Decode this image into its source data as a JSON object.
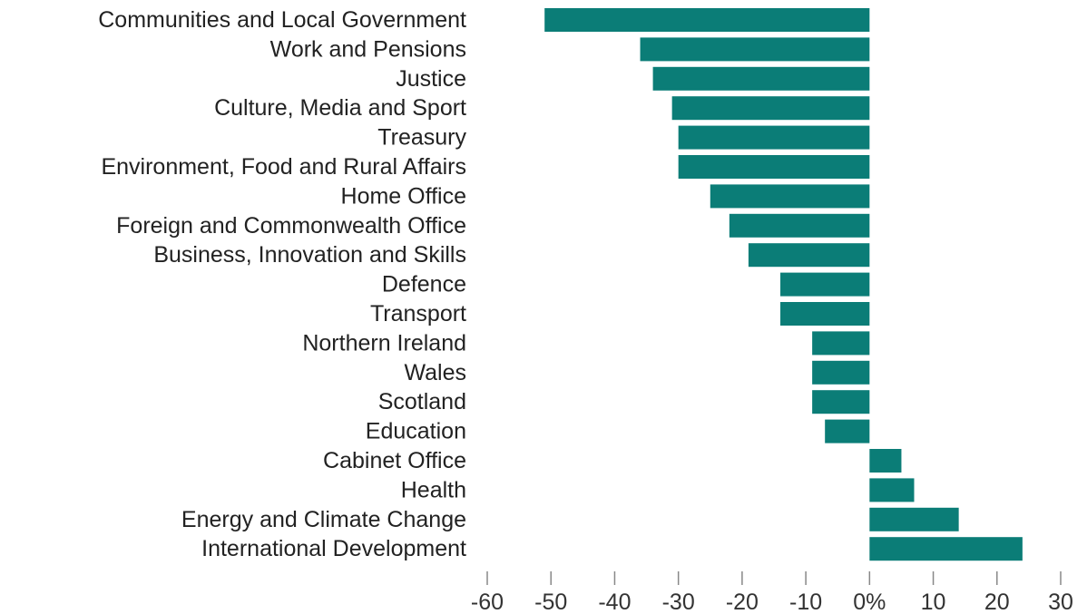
{
  "chart_data": {
    "type": "bar",
    "orientation": "horizontal",
    "title": "",
    "xlabel": "",
    "ylabel": "",
    "categories": [
      "Communities and Local Government",
      "Work and Pensions",
      "Justice",
      "Culture, Media and Sport",
      "Treasury",
      "Environment, Food and Rural Affairs",
      "Home Office",
      "Foreign and Commonwealth Office",
      "Business, Innovation and Skills",
      "Defence",
      "Transport",
      "Northern Ireland",
      "Wales",
      "Scotland",
      "Education",
      "Cabinet Office",
      "Health",
      "Energy and Climate Change",
      "International Development"
    ],
    "values": [
      -51,
      -36,
      -34,
      -31,
      -30,
      -30,
      -25,
      -22,
      -19,
      -14,
      -14,
      -9,
      -9,
      -9,
      -7,
      5,
      7,
      14,
      24
    ],
    "xlim": [
      -60,
      30
    ],
    "xticks": [
      -60,
      -50,
      -40,
      -30,
      -20,
      -10,
      0,
      10,
      20,
      30
    ],
    "xtick_labels": [
      "-60",
      "-50",
      "-40",
      "-30",
      "-20",
      "-10",
      "0%",
      "10",
      "20",
      "30"
    ],
    "grid": false,
    "bar_color": "#0b7d77"
  }
}
